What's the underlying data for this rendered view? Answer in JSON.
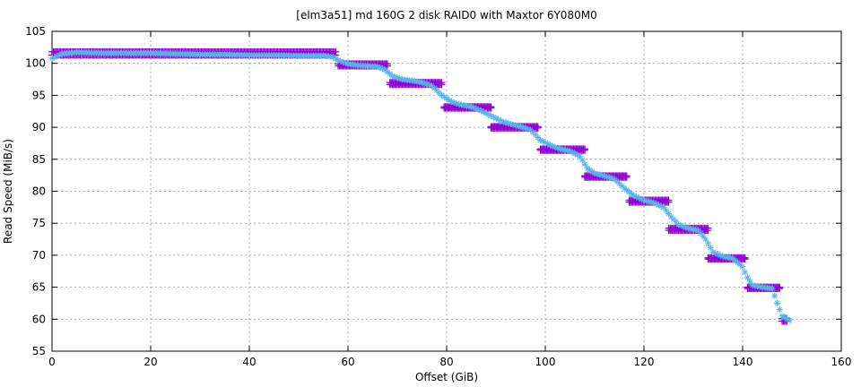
{
  "chart_data": {
    "type": "scatter",
    "title": "[elm3a51] md 160G 2 disk RAID0 with Maxtor 6Y080M0",
    "xlabel": "Offset (GiB)",
    "ylabel": "Read Speed (MiB/s)",
    "xlim": [
      0,
      160
    ],
    "ylim": [
      55,
      105
    ],
    "xticks": [
      0,
      20,
      40,
      60,
      80,
      100,
      120,
      140,
      160
    ],
    "yticks": [
      55,
      60,
      65,
      70,
      75,
      80,
      85,
      90,
      95,
      100,
      105
    ],
    "grid": true,
    "series": [
      {
        "marker": "plus",
        "color": "#9400d3",
        "plateaus": [
          {
            "x": [
              0,
              57.5
            ],
            "y": [
              101.8,
              101.3
            ]
          },
          {
            "x": [
              58,
              68
            ],
            "y": [
              99.9,
              99.6
            ]
          },
          {
            "x": [
              68.5,
              79
            ],
            "y": [
              97.0,
              96.7
            ]
          },
          {
            "x": [
              79.5,
              89
            ],
            "y": [
              93.2,
              93.0
            ]
          },
          {
            "x": [
              89,
              98.5
            ],
            "y": [
              90.1,
              89.9
            ]
          },
          {
            "x": [
              99,
              108
            ],
            "y": [
              86.6,
              86.4
            ]
          },
          {
            "x": [
              108,
              116.5
            ],
            "y": [
              82.4,
              82.2
            ]
          },
          {
            "x": [
              117,
              125
            ],
            "y": [
              78.6,
              78.3
            ]
          },
          {
            "x": [
              125,
              133
            ],
            "y": [
              74.2,
              73.9
            ]
          },
          {
            "x": [
              133,
              140.5
            ],
            "y": [
              69.6,
              69.4
            ]
          },
          {
            "x": [
              141,
              147.5
            ],
            "y": [
              65.0,
              64.8
            ]
          },
          {
            "x": [
              148,
              149
            ],
            "y": [
              60.1,
              59.7
            ]
          }
        ]
      },
      {
        "marker": "star",
        "color": "#56b4e9",
        "points": [
          [
            0,
            100.8
          ],
          [
            2,
            101.5
          ],
          [
            5,
            101.7
          ],
          [
            10,
            101.6
          ],
          [
            15,
            101.6
          ],
          [
            20,
            101.6
          ],
          [
            25,
            101.5
          ],
          [
            30,
            101.4
          ],
          [
            35,
            101.4
          ],
          [
            40,
            101.3
          ],
          [
            45,
            101.3
          ],
          [
            50,
            101.2
          ],
          [
            55,
            101.2
          ],
          [
            57,
            101.0
          ],
          [
            58,
            100.5
          ],
          [
            60,
            99.9
          ],
          [
            62,
            99.7
          ],
          [
            64,
            99.6
          ],
          [
            66,
            99.5
          ],
          [
            67.5,
            99.0
          ],
          [
            69,
            98.0
          ],
          [
            71,
            97.5
          ],
          [
            73,
            97.3
          ],
          [
            75,
            97.0
          ],
          [
            77,
            96.5
          ],
          [
            79,
            95.0
          ],
          [
            81,
            94.0
          ],
          [
            83,
            93.5
          ],
          [
            85,
            93.2
          ],
          [
            87,
            92.6
          ],
          [
            89,
            91.8
          ],
          [
            91,
            91.0
          ],
          [
            93,
            90.5
          ],
          [
            95,
            90.1
          ],
          [
            97,
            89.6
          ],
          [
            99,
            88.0
          ],
          [
            101,
            87.2
          ],
          [
            103,
            86.6
          ],
          [
            105,
            86.3
          ],
          [
            107,
            85.5
          ],
          [
            108.5,
            83.6
          ],
          [
            110,
            82.8
          ],
          [
            112,
            82.4
          ],
          [
            114,
            81.9
          ],
          [
            116,
            80.5
          ],
          [
            118,
            79.3
          ],
          [
            120,
            78.6
          ],
          [
            122,
            78.2
          ],
          [
            124,
            77.5
          ],
          [
            125.5,
            76.0
          ],
          [
            127,
            74.8
          ],
          [
            129,
            74.2
          ],
          [
            131,
            73.9
          ],
          [
            132.5,
            72.5
          ],
          [
            134,
            70.5
          ],
          [
            136,
            69.8
          ],
          [
            138,
            69.5
          ],
          [
            140,
            68.2
          ],
          [
            141,
            66.5
          ],
          [
            142,
            65.3
          ],
          [
            144,
            65.0
          ],
          [
            146,
            64.8
          ],
          [
            147,
            62.5
          ],
          [
            148,
            60.5
          ],
          [
            149.5,
            59.8
          ]
        ]
      }
    ]
  }
}
